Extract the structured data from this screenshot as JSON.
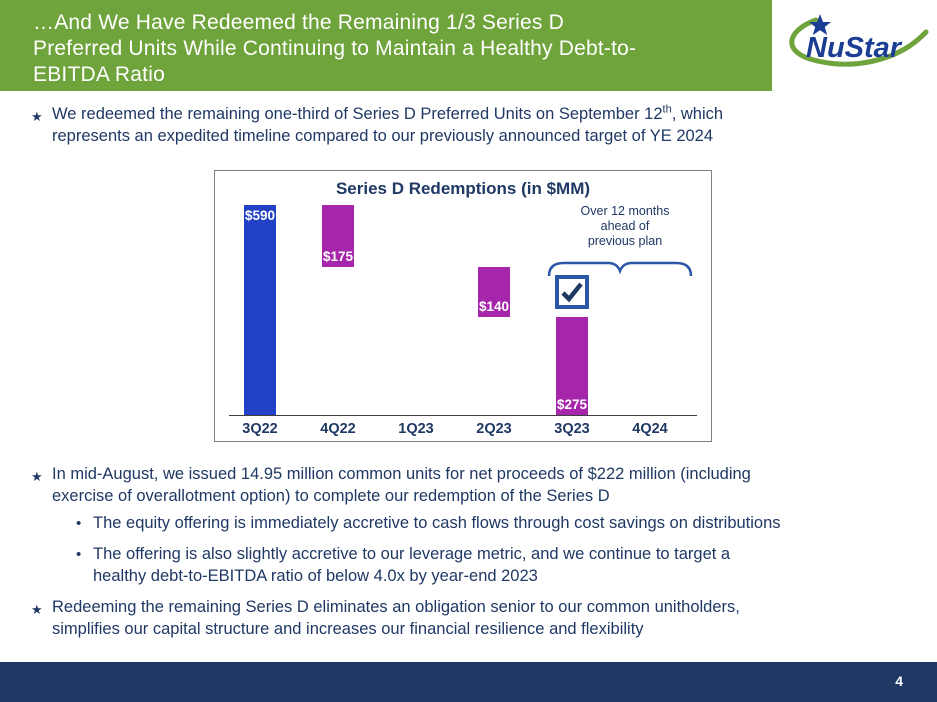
{
  "slide": {
    "page_number": "4",
    "title_lines": [
      "…And We Have Redeemed the Remaining 1/3 Series D",
      "Preferred Units While Continuing to Maintain a Healthy Debt-to-",
      "EBITDA Ratio"
    ]
  },
  "logo": {
    "text": "NuStar"
  },
  "markers": {
    "star": "★",
    "dot": "•"
  },
  "bullets": {
    "b1": {
      "line1_pre": "We redeemed the remaining one-third of Series D Preferred Units on September 12",
      "sup": "th",
      "line1_post": ", which",
      "line2": "represents an expedited timeline compared to our previously announced target of YE 2024"
    },
    "b2_lines": [
      "In mid-August, we issued 14.95 million common units for net proceeds of $222 million (including",
      "exercise of overallotment option) to complete our redemption of the Series D"
    ],
    "sub1": "The equity offering is immediately accretive to cash flows through cost savings on distributions",
    "sub2_lines": [
      "The offering is also slightly accretive to our leverage metric, and we continue to target a",
      "healthy debt-to-EBITDA ratio of below 4.0x by year-end 2023"
    ],
    "b3_lines": [
      "Redeeming the remaining Series D eliminates an obligation senior to our common unitholders,",
      "simplifies our capital structure and increases our financial resilience and flexibility"
    ]
  },
  "chart_data": {
    "type": "bar",
    "subtype": "waterfall",
    "title": "Series D Redemptions (in $MM)",
    "unit": "$MM",
    "categories": [
      "3Q22",
      "4Q22",
      "1Q23",
      "2Q23",
      "3Q23",
      "4Q24"
    ],
    "values": [
      590,
      175,
      null,
      140,
      275,
      null
    ],
    "bar_segments": [
      {
        "category": "3Q22",
        "value": 590,
        "from": 0,
        "to": 590,
        "label": "$590",
        "color": "#2341c4",
        "label_pos": "top"
      },
      {
        "category": "4Q22",
        "value": 175,
        "from": 415,
        "to": 590,
        "label": "$175",
        "color": "#a626ab",
        "label_pos": "bottom"
      },
      {
        "category": "2Q23",
        "value": 140,
        "from": 275,
        "to": 415,
        "label": "$140",
        "color": "#a626ab",
        "label_pos": "bottom"
      },
      {
        "category": "3Q23",
        "value": 275,
        "from": 0,
        "to": 275,
        "label": "$275",
        "color": "#a626ab",
        "label_pos": "bottom"
      }
    ],
    "annotation_lines": [
      "Over 12 months",
      "ahead of",
      "previous plan"
    ],
    "checkmark_over": "3Q23",
    "ylim": [
      0,
      620
    ],
    "grid": false,
    "legend": false
  },
  "colors": {
    "header_green": "#6fa33c",
    "navy_text": "#1f3864",
    "bar_blue": "#2341c4",
    "bar_purple": "#a626ab",
    "accent_blue": "#2c57a5",
    "logo_blue": "#1b3e94",
    "footer_navy": "#1f3864"
  }
}
